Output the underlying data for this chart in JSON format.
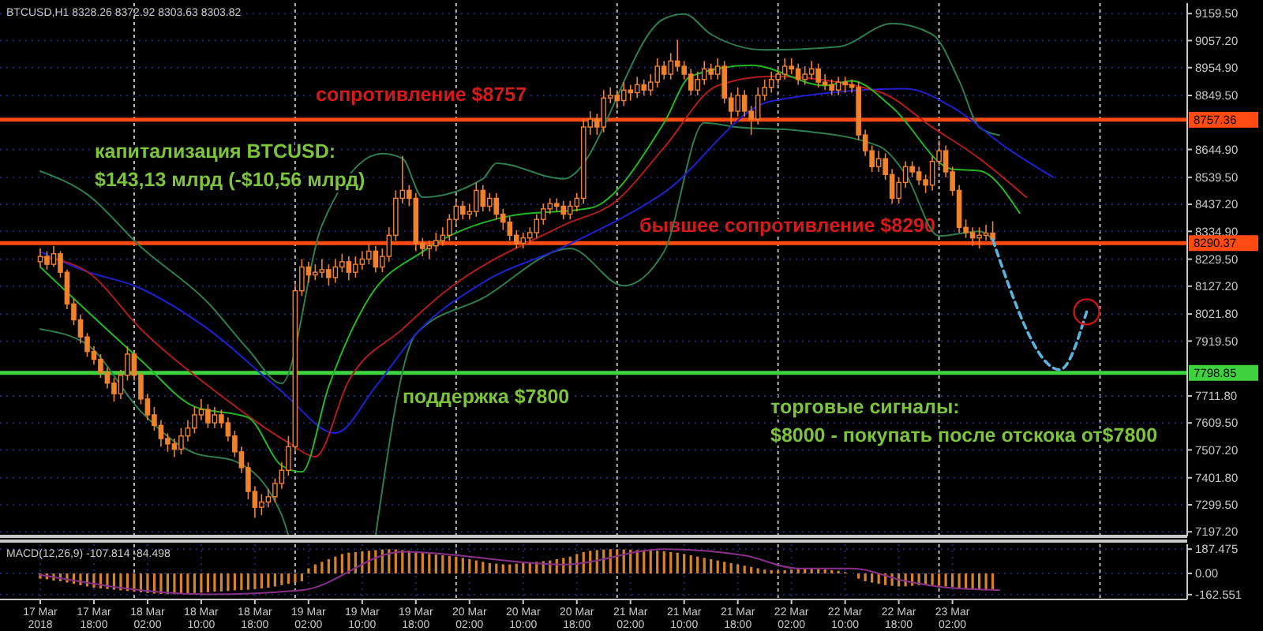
{
  "chart_data": [
    {
      "type": "candlestick",
      "title": "BTCUSD,H1  8328.26 8372.92 8303.63 8303.82",
      "color": "#f0822c",
      "grid": true,
      "tick_labels": "y",
      "xlim": [
        "2018-03-17T04:00",
        "2018-03-24T13:00"
      ],
      "ylim": [
        7180,
        9199
      ],
      "xticks": [
        {
          "value": "2018-03-18T00:00",
          "label": null
        },
        {
          "value": "2018-03-19T00:00",
          "label": null
        },
        {
          "value": "2018-03-20T00:00",
          "label": null
        },
        {
          "value": "2018-03-21T00:00",
          "label": null
        },
        {
          "value": "2018-03-22T00:00",
          "label": null
        },
        {
          "value": "2018-03-23T00:00",
          "label": null
        },
        {
          "value": "2018-03-24T00:00",
          "label": null
        }
      ],
      "yticks": [
        {
          "value": 9159.5,
          "label": "9159.50"
        },
        {
          "value": 9057.2,
          "label": "9057.20"
        },
        {
          "value": 8954.9,
          "label": "8954.90"
        },
        {
          "value": 8849.5,
          "label": "8849.50"
        },
        {
          "value": 8644.9,
          "label": "8644.90"
        },
        {
          "value": 8539.5,
          "label": "8539.50"
        },
        {
          "value": 8437.2,
          "label": "8437.20"
        },
        {
          "value": 8334.9,
          "label": "8334.90"
        },
        {
          "value": 8229.5,
          "label": "8229.50"
        },
        {
          "value": 8127.2,
          "label": "8127.20"
        },
        {
          "value": 8021.8,
          "label": "8021.80"
        },
        {
          "value": 7919.5,
          "label": "7919.50"
        },
        {
          "value": 7711.8,
          "label": "7711.80"
        },
        {
          "value": 7609.5,
          "label": "7609.50"
        },
        {
          "value": 7507.2,
          "label": "7507.20"
        },
        {
          "value": 7401.8,
          "label": "7401.80"
        },
        {
          "value": 7299.5,
          "label": "7299.50"
        },
        {
          "value": 7197.2,
          "label": "7197.20"
        }
      ],
      "x": [
        "2018-03-17T10:00",
        "2018-03-17T11:00",
        "2018-03-17T12:00",
        "2018-03-17T13:00",
        "2018-03-17T14:00",
        "2018-03-17T15:00",
        "2018-03-17T16:00",
        "2018-03-17T17:00",
        "2018-03-17T18:00",
        "2018-03-17T19:00",
        "2018-03-17T20:00",
        "2018-03-17T21:00",
        "2018-03-17T22:00",
        "2018-03-17T23:00",
        "2018-03-18T00:00",
        "2018-03-18T01:00",
        "2018-03-18T02:00",
        "2018-03-18T03:00",
        "2018-03-18T04:00",
        "2018-03-18T05:00",
        "2018-03-18T06:00",
        "2018-03-18T07:00",
        "2018-03-18T08:00",
        "2018-03-18T09:00",
        "2018-03-18T10:00",
        "2018-03-18T11:00",
        "2018-03-18T12:00",
        "2018-03-18T13:00",
        "2018-03-18T14:00",
        "2018-03-18T15:00",
        "2018-03-18T16:00",
        "2018-03-18T17:00",
        "2018-03-18T18:00",
        "2018-03-18T19:00",
        "2018-03-18T20:00",
        "2018-03-18T21:00",
        "2018-03-18T22:00",
        "2018-03-18T23:00",
        "2018-03-19T00:00",
        "2018-03-19T01:00",
        "2018-03-19T02:00",
        "2018-03-19T03:00",
        "2018-03-19T04:00",
        "2018-03-19T05:00",
        "2018-03-19T06:00",
        "2018-03-19T07:00",
        "2018-03-19T08:00",
        "2018-03-19T09:00",
        "2018-03-19T10:00",
        "2018-03-19T11:00",
        "2018-03-19T12:00",
        "2018-03-19T13:00",
        "2018-03-19T14:00",
        "2018-03-19T15:00",
        "2018-03-19T16:00",
        "2018-03-19T17:00",
        "2018-03-19T18:00",
        "2018-03-19T19:00",
        "2018-03-19T20:00",
        "2018-03-19T21:00",
        "2018-03-19T22:00",
        "2018-03-19T23:00",
        "2018-03-20T00:00",
        "2018-03-20T01:00",
        "2018-03-20T02:00",
        "2018-03-20T03:00",
        "2018-03-20T04:00",
        "2018-03-20T05:00",
        "2018-03-20T06:00",
        "2018-03-20T07:00",
        "2018-03-20T08:00",
        "2018-03-20T09:00",
        "2018-03-20T10:00",
        "2018-03-20T11:00",
        "2018-03-20T12:00",
        "2018-03-20T13:00",
        "2018-03-20T14:00",
        "2018-03-20T15:00",
        "2018-03-20T16:00",
        "2018-03-20T17:00",
        "2018-03-20T18:00",
        "2018-03-20T19:00",
        "2018-03-20T20:00",
        "2018-03-20T21:00",
        "2018-03-20T22:00",
        "2018-03-20T23:00",
        "2018-03-21T00:00",
        "2018-03-21T01:00",
        "2018-03-21T02:00",
        "2018-03-21T03:00",
        "2018-03-21T04:00",
        "2018-03-21T05:00",
        "2018-03-21T06:00",
        "2018-03-21T07:00",
        "2018-03-21T08:00",
        "2018-03-21T09:00",
        "2018-03-21T10:00",
        "2018-03-21T11:00",
        "2018-03-21T12:00",
        "2018-03-21T13:00",
        "2018-03-21T14:00",
        "2018-03-21T15:00",
        "2018-03-21T16:00",
        "2018-03-21T17:00",
        "2018-03-21T18:00",
        "2018-03-21T19:00",
        "2018-03-21T20:00",
        "2018-03-21T21:00",
        "2018-03-21T22:00",
        "2018-03-21T23:00",
        "2018-03-22T00:00",
        "2018-03-22T01:00",
        "2018-03-22T02:00",
        "2018-03-22T03:00",
        "2018-03-22T04:00",
        "2018-03-22T05:00",
        "2018-03-22T06:00",
        "2018-03-22T07:00",
        "2018-03-22T08:00",
        "2018-03-22T09:00",
        "2018-03-22T10:00",
        "2018-03-22T11:00",
        "2018-03-22T12:00",
        "2018-03-22T13:00",
        "2018-03-22T14:00",
        "2018-03-22T15:00",
        "2018-03-22T16:00",
        "2018-03-22T17:00",
        "2018-03-22T18:00",
        "2018-03-22T19:00",
        "2018-03-22T20:00",
        "2018-03-22T21:00",
        "2018-03-22T22:00",
        "2018-03-22T23:00",
        "2018-03-23T00:00",
        "2018-03-23T01:00",
        "2018-03-23T02:00",
        "2018-03-23T03:00",
        "2018-03-23T04:00",
        "2018-03-23T05:00",
        "2018-03-23T06:00",
        "2018-03-23T07:00",
        "2018-03-23T08:00"
      ],
      "ohlc": [
        [
          8220,
          8270,
          8200,
          8240
        ],
        [
          8240,
          8260,
          8190,
          8210
        ],
        [
          8210,
          8280,
          8200,
          8250
        ],
        [
          8250,
          8260,
          8160,
          8180
        ],
        [
          8180,
          8190,
          8040,
          8060
        ],
        [
          8060,
          8080,
          7980,
          8000
        ],
        [
          8000,
          8020,
          7910,
          7935
        ],
        [
          7935,
          7950,
          7860,
          7880
        ],
        [
          7880,
          7900,
          7830,
          7850
        ],
        [
          7850,
          7870,
          7780,
          7800
        ],
        [
          7800,
          7820,
          7740,
          7760
        ],
        [
          7760,
          7780,
          7690,
          7720
        ],
        [
          7720,
          7810,
          7700,
          7790
        ],
        [
          7790,
          7900,
          7770,
          7870
        ],
        [
          7870,
          7880,
          7770,
          7790
        ],
        [
          7790,
          7800,
          7680,
          7700
        ],
        [
          7700,
          7720,
          7620,
          7640
        ],
        [
          7640,
          7670,
          7580,
          7600
        ],
        [
          7600,
          7620,
          7520,
          7550
        ],
        [
          7550,
          7570,
          7500,
          7530
        ],
        [
          7530,
          7550,
          7480,
          7510
        ],
        [
          7510,
          7590,
          7490,
          7560
        ],
        [
          7560,
          7620,
          7540,
          7590
        ],
        [
          7590,
          7670,
          7570,
          7640
        ],
        [
          7640,
          7700,
          7620,
          7660
        ],
        [
          7660,
          7680,
          7590,
          7610
        ],
        [
          7610,
          7670,
          7590,
          7640
        ],
        [
          7640,
          7660,
          7590,
          7610
        ],
        [
          7610,
          7630,
          7540,
          7560
        ],
        [
          7560,
          7580,
          7480,
          7500
        ],
        [
          7500,
          7520,
          7420,
          7440
        ],
        [
          7440,
          7460,
          7320,
          7350
        ],
        [
          7350,
          7370,
          7250,
          7290
        ],
        [
          7290,
          7340,
          7260,
          7310
        ],
        [
          7310,
          7360,
          7290,
          7330
        ],
        [
          7330,
          7400,
          7310,
          7380
        ],
        [
          7380,
          7460,
          7360,
          7430
        ],
        [
          7430,
          7560,
          7410,
          7520
        ],
        [
          7520,
          8140,
          7500,
          8110
        ],
        [
          8110,
          8230,
          8090,
          8200
        ],
        [
          8200,
          8220,
          8140,
          8170
        ],
        [
          8170,
          8210,
          8150,
          8180
        ],
        [
          8180,
          8230,
          8160,
          8190
        ],
        [
          8190,
          8210,
          8130,
          8160
        ],
        [
          8160,
          8230,
          8140,
          8200
        ],
        [
          8200,
          8250,
          8180,
          8220
        ],
        [
          8220,
          8240,
          8150,
          8180
        ],
        [
          8180,
          8240,
          8160,
          8210
        ],
        [
          8210,
          8260,
          8190,
          8230
        ],
        [
          8230,
          8290,
          8210,
          8260
        ],
        [
          8260,
          8280,
          8180,
          8200
        ],
        [
          8200,
          8270,
          8180,
          8240
        ],
        [
          8240,
          8350,
          8220,
          8320
        ],
        [
          8320,
          8490,
          8300,
          8460
        ],
        [
          8460,
          8620,
          8440,
          8490
        ],
        [
          8490,
          8510,
          8430,
          8460
        ],
        [
          8460,
          8480,
          8260,
          8290
        ],
        [
          8290,
          8310,
          8240,
          8270
        ],
        [
          8270,
          8300,
          8230,
          8280
        ],
        [
          8280,
          8330,
          8260,
          8300
        ],
        [
          8300,
          8350,
          8280,
          8320
        ],
        [
          8320,
          8400,
          8300,
          8380
        ],
        [
          8380,
          8460,
          8360,
          8430
        ],
        [
          8430,
          8450,
          8380,
          8400
        ],
        [
          8400,
          8440,
          8380,
          8410
        ],
        [
          8410,
          8520,
          8390,
          8490
        ],
        [
          8490,
          8510,
          8410,
          8430
        ],
        [
          8430,
          8480,
          8410,
          8460
        ],
        [
          8460,
          8480,
          8380,
          8400
        ],
        [
          8400,
          8420,
          8340,
          8370
        ],
        [
          8370,
          8390,
          8300,
          8320
        ],
        [
          8320,
          8340,
          8270,
          8290
        ],
        [
          8290,
          8330,
          8270,
          8310
        ],
        [
          8310,
          8350,
          8290,
          8330
        ],
        [
          8330,
          8400,
          8310,
          8380
        ],
        [
          8380,
          8440,
          8360,
          8420
        ],
        [
          8420,
          8460,
          8400,
          8440
        ],
        [
          8440,
          8460,
          8410,
          8430
        ],
        [
          8430,
          8450,
          8380,
          8400
        ],
        [
          8400,
          8450,
          8380,
          8430
        ],
        [
          8430,
          8480,
          8410,
          8460
        ],
        [
          8460,
          8760,
          8440,
          8730
        ],
        [
          8730,
          8790,
          8700,
          8760
        ],
        [
          8760,
          8780,
          8700,
          8730
        ],
        [
          8730,
          8870,
          8710,
          8840
        ],
        [
          8840,
          8880,
          8820,
          8850
        ],
        [
          8850,
          8870,
          8800,
          8830
        ],
        [
          8830,
          8900,
          8810,
          8870
        ],
        [
          8870,
          8890,
          8830,
          8860
        ],
        [
          8860,
          8920,
          8840,
          8890
        ],
        [
          8890,
          8910,
          8850,
          8870
        ],
        [
          8870,
          8930,
          8850,
          8900
        ],
        [
          8900,
          8990,
          8880,
          8960
        ],
        [
          8960,
          8980,
          8910,
          8930
        ],
        [
          8930,
          9010,
          8910,
          8980
        ],
        [
          8980,
          9060,
          8940,
          8960
        ],
        [
          8960,
          8980,
          8910,
          8930
        ],
        [
          8930,
          8950,
          8850,
          8870
        ],
        [
          8870,
          8940,
          8850,
          8910
        ],
        [
          8910,
          8980,
          8890,
          8950
        ],
        [
          8950,
          8970,
          8910,
          8930
        ],
        [
          8930,
          8990,
          8910,
          8960
        ],
        [
          8960,
          8980,
          8820,
          8840
        ],
        [
          8840,
          8860,
          8740,
          8790
        ],
        [
          8790,
          8880,
          8770,
          8850
        ],
        [
          8850,
          8870,
          8770,
          8790
        ],
        [
          8790,
          8810,
          8700,
          8760
        ],
        [
          8760,
          8880,
          8740,
          8850
        ],
        [
          8850,
          8910,
          8830,
          8880
        ],
        [
          8880,
          8940,
          8860,
          8910
        ],
        [
          8910,
          8960,
          8890,
          8930
        ],
        [
          8930,
          8990,
          8910,
          8960
        ],
        [
          8960,
          8990,
          8930,
          8950
        ],
        [
          8950,
          8970,
          8890,
          8910
        ],
        [
          8910,
          8960,
          8890,
          8930
        ],
        [
          8930,
          8980,
          8910,
          8950
        ],
        [
          8950,
          8970,
          8880,
          8900
        ],
        [
          8900,
          8930,
          8870,
          8890
        ],
        [
          8890,
          8910,
          8850,
          8870
        ],
        [
          8870,
          8920,
          8850,
          8900
        ],
        [
          8900,
          8920,
          8860,
          8890
        ],
        [
          8890,
          8910,
          8860,
          8880
        ],
        [
          8880,
          8900,
          8680,
          8700
        ],
        [
          8700,
          8720,
          8620,
          8640
        ],
        [
          8640,
          8660,
          8560,
          8580
        ],
        [
          8580,
          8640,
          8560,
          8610
        ],
        [
          8610,
          8630,
          8530,
          8550
        ],
        [
          8550,
          8570,
          8440,
          8460
        ],
        [
          8460,
          8540,
          8440,
          8520
        ],
        [
          8520,
          8600,
          8500,
          8580
        ],
        [
          8580,
          8600,
          8540,
          8560
        ],
        [
          8560,
          8580,
          8510,
          8530
        ],
        [
          8530,
          8550,
          8480,
          8510
        ],
        [
          8510,
          8620,
          8490,
          8600
        ],
        [
          8600,
          8680,
          8580,
          8640
        ],
        [
          8640,
          8660,
          8540,
          8560
        ],
        [
          8560,
          8580,
          8470,
          8490
        ],
        [
          8490,
          8510,
          8330,
          8350
        ],
        [
          8350,
          8380,
          8310,
          8330
        ],
        [
          8330,
          8350,
          8280,
          8310
        ],
        [
          8310,
          8350,
          8270,
          8320
        ],
        [
          8320,
          8360,
          8300,
          8328.26
        ],
        [
          8328.26,
          8372.92,
          8303.63,
          8303.82
        ]
      ],
      "series": [
        {
          "type": "line",
          "color": "#2e7d4f",
          "x": [
            "2018-03-17T10:00",
            "2018-03-17T17:00",
            "2018-03-18T01:00",
            "2018-03-18T11:00",
            "2018-03-18T17:00",
            "2018-03-18T22:00",
            "2018-03-19T04:00",
            "2018-03-19T13:00",
            "2018-03-19T16:00",
            "2018-03-19T19:00",
            "2018-03-20T04:00",
            "2018-03-20T06:00",
            "2018-03-20T16:00",
            "2018-03-21T07:00",
            "2018-03-21T10:00",
            "2018-03-21T14:00",
            "2018-03-21T22:00",
            "2018-03-22T09:00",
            "2018-03-22T17:00",
            "2018-03-22T23:00",
            "2018-03-23T03:00",
            "2018-03-23T06:00",
            "2018-03-23T09:00"
          ],
          "values": [
            8563,
            8475,
            8276,
            8065,
            7888,
            7759,
            8358,
            8629,
            8611,
            8464,
            8534,
            8593,
            8534,
            9140,
            9158,
            9081,
            9022,
            9034,
            9122,
            9081,
            8905,
            8729,
            8699
          ]
        },
        {
          "type": "line",
          "color": "#2e7d4f",
          "x": [
            "2018-03-17T10:00",
            "2018-03-17T17:00",
            "2018-03-18T01:00",
            "2018-03-18T09:00",
            "2018-03-18T15:00",
            "2018-03-18T22:00",
            "2018-03-18T23:00",
            "2018-03-19T05:00",
            "2018-03-19T12:00",
            "2018-03-19T18:00",
            "2018-03-20T04:00",
            "2018-03-20T17:00",
            "2018-03-21T01:00",
            "2018-03-21T07:00",
            "2018-03-21T13:00",
            "2018-03-21T18:00",
            "2018-03-22T03:00",
            "2018-03-22T15:00",
            "2018-03-22T19:00",
            "2018-03-23T00:00",
            "2018-03-23T06:00",
            "2018-03-23T08:00"
          ],
          "values": [
            7965,
            7906,
            7653,
            7495,
            7465,
            7260,
            7183,
            null,
            7183,
            7946,
            8082,
            8270,
            8129,
            8258,
            8746,
            8729,
            8717,
            8658,
            8552,
            8317,
            8335,
            8305
          ]
        },
        {
          "type": "line",
          "color": "#1f1fd0",
          "x": [
            "2018-03-17T10:00",
            "2018-03-17T17:00",
            "2018-03-18T00:00",
            "2018-03-18T11:00",
            "2018-03-18T22:00",
            "2018-03-19T06:00",
            "2018-03-19T12:00",
            "2018-03-19T18:00",
            "2018-03-20T04:00",
            "2018-03-20T16:00",
            "2018-03-21T07:00",
            "2018-03-21T23:00",
            "2018-03-22T19:00",
            "2018-03-23T02:00",
            "2018-03-23T10:00",
            "2018-03-23T17:00"
          ],
          "values": [
            8258,
            8182,
            8129,
            7965,
            7729,
            7571,
            7747,
            7946,
            8141,
            8276,
            8482,
            8828,
            8875,
            8805,
            8652,
            8540
          ]
        },
        {
          "type": "line",
          "color": "#b01c1c",
          "x": [
            "2018-03-17T10:00",
            "2018-03-17T17:00",
            "2018-03-18T01:00",
            "2018-03-18T13:00",
            "2018-03-18T23:00",
            "2018-03-19T03:00",
            "2018-03-19T08:00",
            "2018-03-19T16:00",
            "2018-03-19T22:00",
            "2018-03-20T16:00",
            "2018-03-21T00:00",
            "2018-03-21T07:00",
            "2018-03-21T15:00",
            "2018-03-21T23:00",
            "2018-03-22T15:00",
            "2018-03-22T23:00",
            "2018-03-23T06:00",
            "2018-03-23T13:00"
          ],
          "values": [
            8239,
            8182,
            7965,
            7712,
            7535,
            7482,
            7770,
            7965,
            8100,
            8358,
            8452,
            8652,
            8887,
            8922,
            8864,
            8729,
            8611,
            8464
          ]
        },
        {
          "type": "line",
          "color": "#22b822",
          "x": [
            "2018-03-17T10:00",
            "2018-03-18T01:00",
            "2018-03-18T09:00",
            "2018-03-18T17:00",
            "2018-03-18T22:00",
            "2018-03-19T01:00",
            "2018-03-19T05:00",
            "2018-03-19T11:00",
            "2018-03-19T19:00",
            "2018-03-20T08:00",
            "2018-03-20T20:00",
            "2018-03-21T07:00",
            "2018-03-21T11:00",
            "2018-03-21T20:00",
            "2018-03-22T07:00",
            "2018-03-22T11:00",
            "2018-03-22T17:00",
            "2018-03-23T02:00",
            "2018-03-23T06:00",
            "2018-03-23T12:00"
          ],
          "values": [
            8200,
            7847,
            7671,
            7630,
            7448,
            7424,
            7747,
            8082,
            8258,
            8393,
            8423,
            8746,
            8923,
            8964,
            8887,
            8905,
            8805,
            8570,
            8564,
            8405
          ]
        },
        {
          "type": "line",
          "color": "#5ab4dc",
          "line_style": "dashed",
          "x": [
            "2018-03-23T08:00",
            "2018-03-23T18:00",
            "2018-03-23T22:00"
          ],
          "values": [
            8303.82,
            7811,
            8030
          ]
        }
      ],
      "ref_lines": [
        {
          "axis": "y",
          "value": 8757.36,
          "label": "сопротивление $8757",
          "color": "#ff4a12"
        },
        {
          "axis": "y",
          "value": 8290.37,
          "label": "бывшее сопротивление $8290",
          "color": "#ff4a12"
        },
        {
          "axis": "y",
          "value": 7798.85,
          "label": "поддержка $7800",
          "color": "#3ed23e"
        }
      ],
      "annotations": [
        "капитализация BTCUSD:\n$143,13 млрд (-$10,56 млрд)",
        "торговые сигналы:\n$8000 - покупать после отскока от$7800",
        "8757.36",
        "8290.37",
        "7798.85"
      ]
    },
    {
      "type": "bar",
      "title": "MACD(12,26,9) -107.814 -84.498",
      "grid": true,
      "xlim": [
        "2018-03-17T04:00",
        "2018-03-24T13:00"
      ],
      "ylim": [
        -200,
        225
      ],
      "xticks": [
        {
          "value": "2018-03-17T10:00",
          "label": "17 Mar 2018"
        },
        {
          "value": "2018-03-17T18:00",
          "label": "17 Mar 18:00"
        },
        {
          "value": "2018-03-18T00:00",
          "label": null
        },
        {
          "value": "2018-03-18T02:00",
          "label": "18 Mar 02:00"
        },
        {
          "value": "2018-03-18T10:00",
          "label": "18 Mar 10:00"
        },
        {
          "value": "2018-03-18T18:00",
          "label": "18 Mar 18:00"
        },
        {
          "value": "2018-03-19T00:00",
          "label": null
        },
        {
          "value": "2018-03-19T02:00",
          "label": "19 Mar 02:00"
        },
        {
          "value": "2018-03-19T10:00",
          "label": "19 Mar 10:00"
        },
        {
          "value": "2018-03-19T18:00",
          "label": "19 Mar 18:00"
        },
        {
          "value": "2018-03-20T00:00",
          "label": null
        },
        {
          "value": "2018-03-20T02:00",
          "label": "20 Mar 02:00"
        },
        {
          "value": "2018-03-20T10:00",
          "label": "20 Mar 10:00"
        },
        {
          "value": "2018-03-20T18:00",
          "label": "20 Mar 18:00"
        },
        {
          "value": "2018-03-21T00:00",
          "label": null
        },
        {
          "value": "2018-03-21T02:00",
          "label": "21 Mar 02:00"
        },
        {
          "value": "2018-03-21T10:00",
          "label": "21 Mar 10:00"
        },
        {
          "value": "2018-03-21T18:00",
          "label": "21 Mar 18:00"
        },
        {
          "value": "2018-03-22T00:00",
          "label": null
        },
        {
          "value": "2018-03-22T02:00",
          "label": "22 Mar 02:00"
        },
        {
          "value": "2018-03-22T10:00",
          "label": "22 Mar 10:00"
        },
        {
          "value": "2018-03-22T18:00",
          "label": "22 Mar 18:00"
        },
        {
          "value": "2018-03-23T00:00",
          "label": null
        },
        {
          "value": "2018-03-23T02:00",
          "label": "23 Mar 02:00"
        },
        {
          "value": "2018-03-24T00:00",
          "label": null
        }
      ],
      "yticks": [
        187.475,
        {
          "value": 0,
          "label": "0.00"
        },
        -162.551
      ],
      "series": [
        {
          "type": "bar",
          "color": "#d9822b",
          "x": [
            "2018-03-17T10:00",
            "2018-03-17T11:00",
            "2018-03-17T12:00",
            "2018-03-17T13:00",
            "2018-03-17T14:00",
            "2018-03-17T15:00",
            "2018-03-17T16:00",
            "2018-03-17T17:00",
            "2018-03-17T18:00",
            "2018-03-17T19:00",
            "2018-03-17T20:00",
            "2018-03-17T21:00",
            "2018-03-17T22:00",
            "2018-03-17T23:00",
            "2018-03-18T00:00",
            "2018-03-18T01:00",
            "2018-03-18T02:00",
            "2018-03-18T03:00",
            "2018-03-18T04:00",
            "2018-03-18T05:00",
            "2018-03-18T06:00",
            "2018-03-18T07:00",
            "2018-03-18T08:00",
            "2018-03-18T09:00",
            "2018-03-18T10:00",
            "2018-03-18T11:00",
            "2018-03-18T12:00",
            "2018-03-18T13:00",
            "2018-03-18T14:00",
            "2018-03-18T15:00",
            "2018-03-18T16:00",
            "2018-03-18T17:00",
            "2018-03-18T18:00",
            "2018-03-18T19:00",
            "2018-03-18T20:00",
            "2018-03-18T21:00",
            "2018-03-18T22:00",
            "2018-03-18T23:00",
            "2018-03-19T00:00",
            "2018-03-19T01:00",
            "2018-03-19T02:00",
            "2018-03-19T03:00",
            "2018-03-19T04:00",
            "2018-03-19T05:00",
            "2018-03-19T06:00",
            "2018-03-19T07:00",
            "2018-03-19T08:00",
            "2018-03-19T09:00",
            "2018-03-19T10:00",
            "2018-03-19T11:00",
            "2018-03-19T12:00",
            "2018-03-19T13:00",
            "2018-03-19T14:00",
            "2018-03-19T15:00",
            "2018-03-19T16:00",
            "2018-03-19T17:00",
            "2018-03-19T18:00",
            "2018-03-19T19:00",
            "2018-03-19T20:00",
            "2018-03-19T21:00",
            "2018-03-19T22:00",
            "2018-03-19T23:00",
            "2018-03-20T00:00",
            "2018-03-20T01:00",
            "2018-03-20T02:00",
            "2018-03-20T03:00",
            "2018-03-20T04:00",
            "2018-03-20T05:00",
            "2018-03-20T06:00",
            "2018-03-20T07:00",
            "2018-03-20T08:00",
            "2018-03-20T09:00",
            "2018-03-20T10:00",
            "2018-03-20T11:00",
            "2018-03-20T12:00",
            "2018-03-20T13:00",
            "2018-03-20T14:00",
            "2018-03-20T15:00",
            "2018-03-20T16:00",
            "2018-03-20T17:00",
            "2018-03-20T18:00",
            "2018-03-20T19:00",
            "2018-03-20T20:00",
            "2018-03-20T21:00",
            "2018-03-20T22:00",
            "2018-03-20T23:00",
            "2018-03-21T00:00",
            "2018-03-21T01:00",
            "2018-03-21T02:00",
            "2018-03-21T03:00",
            "2018-03-21T04:00",
            "2018-03-21T05:00",
            "2018-03-21T06:00",
            "2018-03-21T07:00",
            "2018-03-21T08:00",
            "2018-03-21T09:00",
            "2018-03-21T10:00",
            "2018-03-21T11:00",
            "2018-03-21T12:00",
            "2018-03-21T13:00",
            "2018-03-21T14:00",
            "2018-03-21T15:00",
            "2018-03-21T16:00",
            "2018-03-21T17:00",
            "2018-03-21T18:00",
            "2018-03-21T19:00",
            "2018-03-21T20:00",
            "2018-03-21T21:00",
            "2018-03-21T22:00",
            "2018-03-21T23:00",
            "2018-03-22T00:00",
            "2018-03-22T01:00",
            "2018-03-22T02:00",
            "2018-03-22T03:00",
            "2018-03-22T04:00",
            "2018-03-22T05:00",
            "2018-03-22T06:00",
            "2018-03-22T07:00",
            "2018-03-22T08:00",
            "2018-03-22T09:00",
            "2018-03-22T10:00",
            "2018-03-22T11:00",
            "2018-03-22T12:00",
            "2018-03-22T13:00",
            "2018-03-22T14:00",
            "2018-03-22T15:00",
            "2018-03-22T16:00",
            "2018-03-22T17:00",
            "2018-03-22T18:00",
            "2018-03-22T19:00",
            "2018-03-22T20:00",
            "2018-03-22T21:00",
            "2018-03-22T22:00",
            "2018-03-22T23:00",
            "2018-03-23T00:00",
            "2018-03-23T01:00",
            "2018-03-23T02:00",
            "2018-03-23T03:00",
            "2018-03-23T04:00",
            "2018-03-23T05:00",
            "2018-03-23T06:00",
            "2018-03-23T07:00",
            "2018-03-23T08:00"
          ],
          "values": [
            -40,
            -45,
            -55,
            -60,
            -70,
            -80,
            -90,
            -100,
            -110,
            -115,
            -120,
            -125,
            -130,
            -135,
            -140,
            -145,
            -150,
            -155,
            -158,
            -160,
            -160,
            -158,
            -155,
            -150,
            -148,
            -145,
            -140,
            -138,
            -135,
            -130,
            -128,
            -125,
            -120,
            -115,
            -110,
            -100,
            -90,
            -80,
            -70,
            -60,
            40,
            70,
            90,
            110,
            130,
            150,
            160,
            165,
            170,
            175,
            180,
            185,
            187,
            185,
            180,
            175,
            170,
            160,
            150,
            145,
            140,
            135,
            130,
            120,
            110,
            100,
            90,
            80,
            75,
            70,
            70,
            75,
            80,
            85,
            90,
            95,
            100,
            110,
            120,
            130,
            150,
            165,
            175,
            180,
            185,
            187,
            187,
            185,
            183,
            180,
            180,
            178,
            175,
            170,
            165,
            160,
            150,
            140,
            130,
            120,
            110,
            100,
            90,
            80,
            70,
            60,
            50,
            40,
            30,
            25,
            20,
            25,
            30,
            35,
            40,
            40,
            35,
            30,
            25,
            20,
            10,
            0,
            -40,
            -60,
            -70,
            -80,
            -90,
            -95,
            -100,
            -99,
            -95,
            -90,
            -85,
            -90,
            -95,
            -100,
            -105,
            -110,
            -120,
            -125,
            -128,
            -130,
            -128
          ]
        },
        {
          "type": "line",
          "color": "#8a2f8a",
          "x": [
            "2018-03-17T10:00",
            "2018-03-18T11:00",
            "2018-03-19T01:00",
            "2018-03-19T16:00",
            "2018-03-20T16:00",
            "2018-03-21T07:00",
            "2018-03-21T19:00",
            "2018-03-22T03:00",
            "2018-03-22T11:00",
            "2018-03-22T19:00",
            "2018-03-23T01:00",
            "2018-03-23T09:00"
          ],
          "values": [
            -10,
            -160,
            -128,
            168,
            69,
            187,
            138,
            39,
            39,
            -59,
            -108,
            -128
          ]
        }
      ]
    }
  ]
}
